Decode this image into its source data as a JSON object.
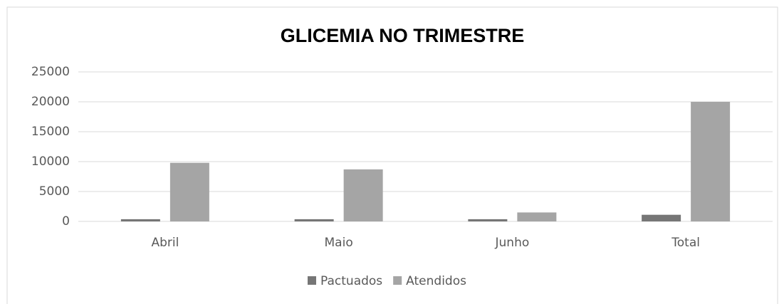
{
  "chart_data": {
    "type": "bar",
    "title": "GLICEMIA NO TRIMESTRE",
    "categories": [
      "Abril",
      "Maio",
      "Junho",
      "Total"
    ],
    "series": [
      {
        "name": "Pactuados",
        "color": "#767676",
        "values": [
          370,
          370,
          370,
          1110
        ]
      },
      {
        "name": "Atendidos",
        "color": "#a5a5a5",
        "values": [
          9800,
          8700,
          1500,
          20000
        ]
      }
    ],
    "ylim": [
      0,
      25000
    ],
    "yticks": [
      0,
      5000,
      10000,
      15000,
      20000,
      25000
    ],
    "grid": true,
    "legend": "bottom"
  }
}
